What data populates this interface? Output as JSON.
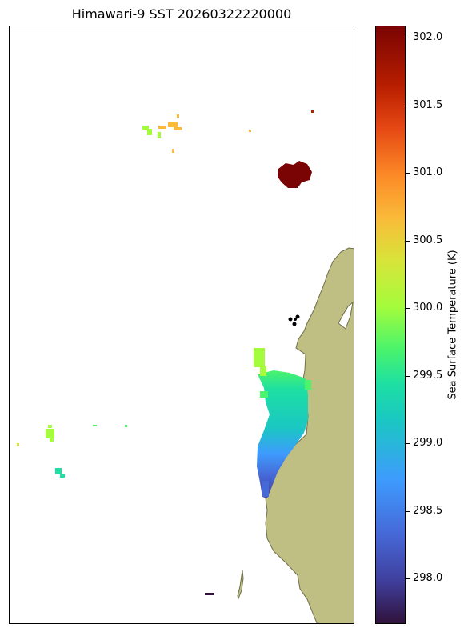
{
  "title": "Himawari-9 SST 20260322220000",
  "colorbar": {
    "label": "Sea Surface Temperature (K)",
    "ticks": [
      "298.0",
      "298.5",
      "299.0",
      "299.5",
      "300.0",
      "300.5",
      "301.0",
      "301.5",
      "302.0"
    ],
    "min": 297.66,
    "max": 302.1
  },
  "colors": {
    "land": "#bfbf83",
    "coastline": "#6e6e4c",
    "markers": "#000000"
  },
  "icons": [
    "station-marker-icon"
  ]
}
